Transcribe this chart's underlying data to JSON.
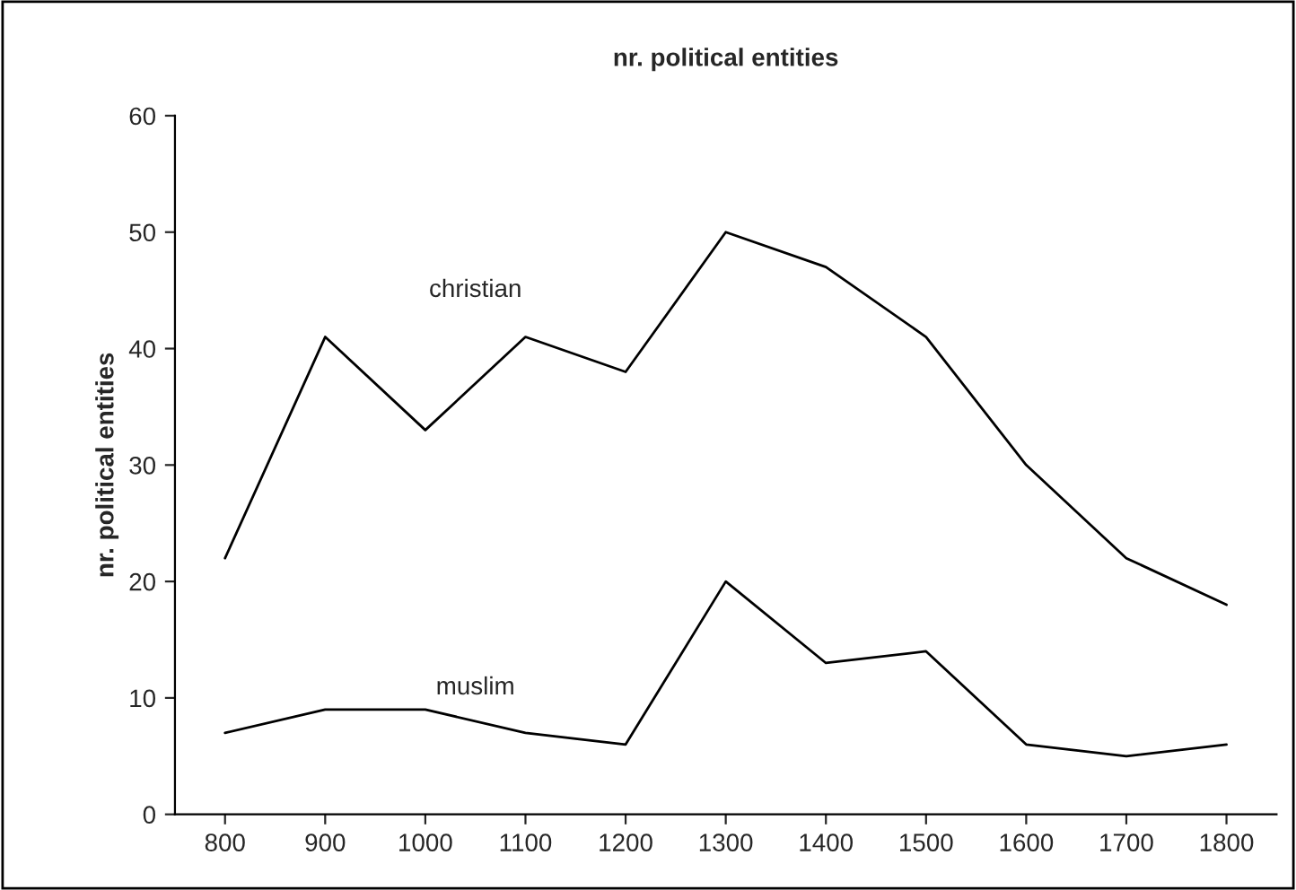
{
  "chart_data": {
    "type": "line",
    "title": "nr. political entities",
    "ylabel": "nr. political entities",
    "categories": [
      "800",
      "900",
      "1000",
      "1100",
      "1200",
      "1300",
      "1400",
      "1500",
      "1600",
      "1700",
      "1800"
    ],
    "series": [
      {
        "name": "christian",
        "color": "#000000",
        "values": [
          22,
          41,
          33,
          41,
          38,
          50,
          47,
          41,
          30,
          22,
          18
        ]
      },
      {
        "name": "muslim",
        "color": "#000000",
        "values": [
          7,
          9,
          9,
          7,
          6,
          20,
          13,
          14,
          6,
          5,
          6
        ]
      }
    ],
    "ylim": [
      0,
      60
    ],
    "yticks": [
      0,
      10,
      20,
      30,
      40,
      50,
      60
    ],
    "grid": false,
    "legend": false,
    "marker": "none",
    "line_style": "solid"
  }
}
